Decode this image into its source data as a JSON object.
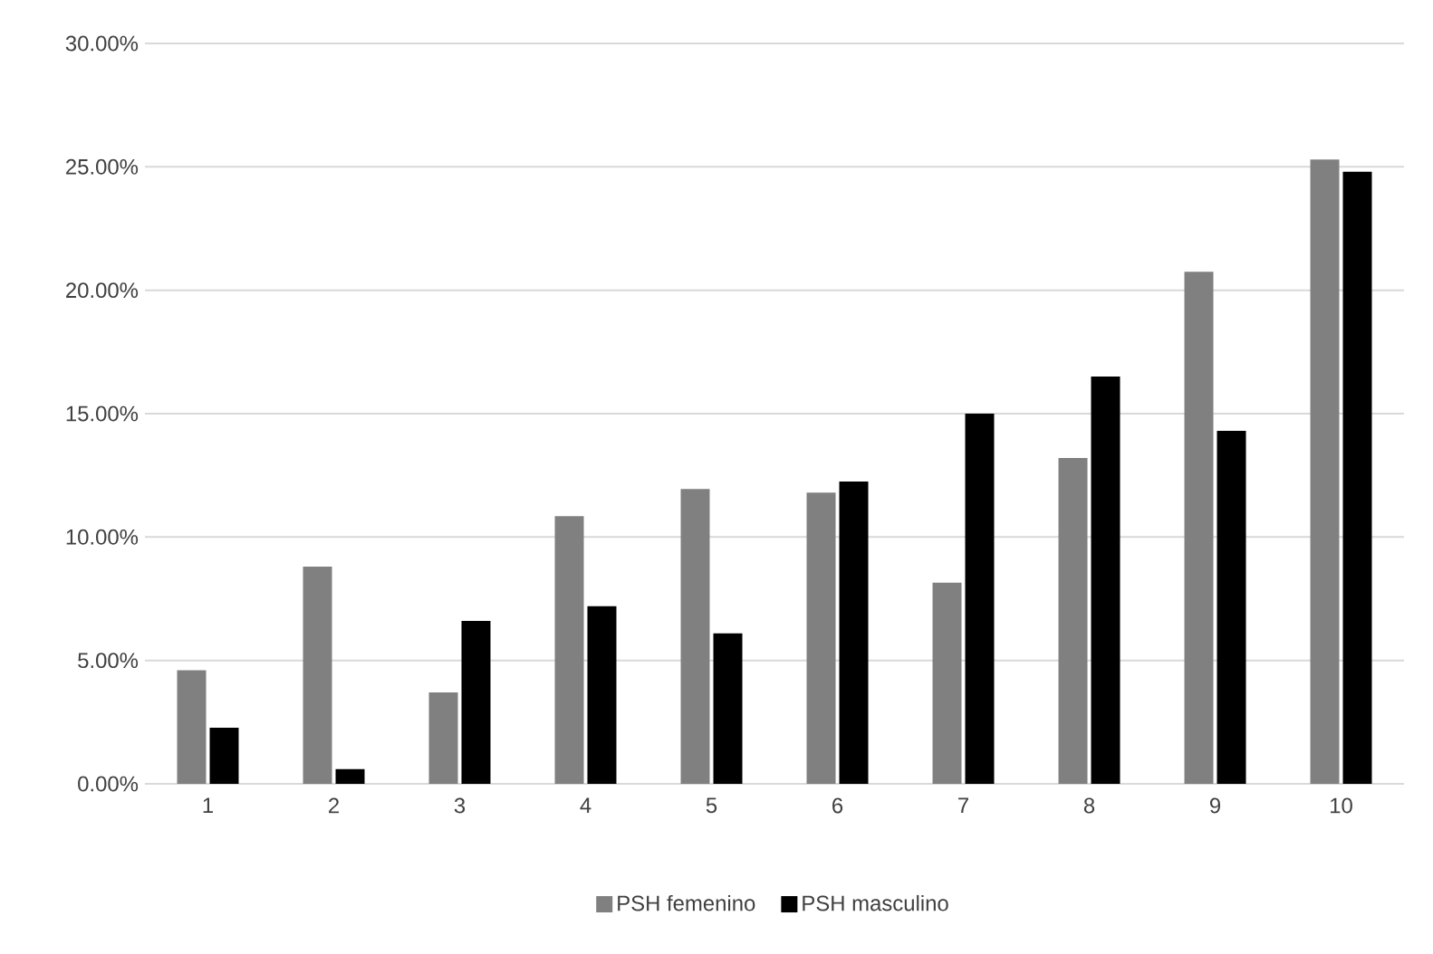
{
  "chart_data": {
    "type": "bar",
    "categories": [
      "1",
      "2",
      "3",
      "4",
      "5",
      "6",
      "7",
      "8",
      "9",
      "10"
    ],
    "series": [
      {
        "name": "PSH femenino",
        "color": "#808080",
        "values": [
          4.6,
          8.8,
          3.7,
          10.85,
          11.95,
          11.8,
          8.15,
          13.2,
          20.75,
          25.3
        ]
      },
      {
        "name": "PSH masculino",
        "color": "#000000",
        "values": [
          2.27,
          0.6,
          6.6,
          7.2,
          6.1,
          12.25,
          15.0,
          16.5,
          14.3,
          24.8
        ]
      }
    ],
    "ylim": [
      0,
      30
    ],
    "yticks": [
      {
        "value": 0,
        "label": "0.00%"
      },
      {
        "value": 5,
        "label": "5.00%"
      },
      {
        "value": 10,
        "label": "10.00%"
      },
      {
        "value": 15,
        "label": "15.00%"
      },
      {
        "value": 20,
        "label": "20.00%"
      },
      {
        "value": 25,
        "label": "25.00%"
      },
      {
        "value": 30,
        "label": "30.00%"
      }
    ],
    "grid": "y",
    "legend": "bottom"
  }
}
